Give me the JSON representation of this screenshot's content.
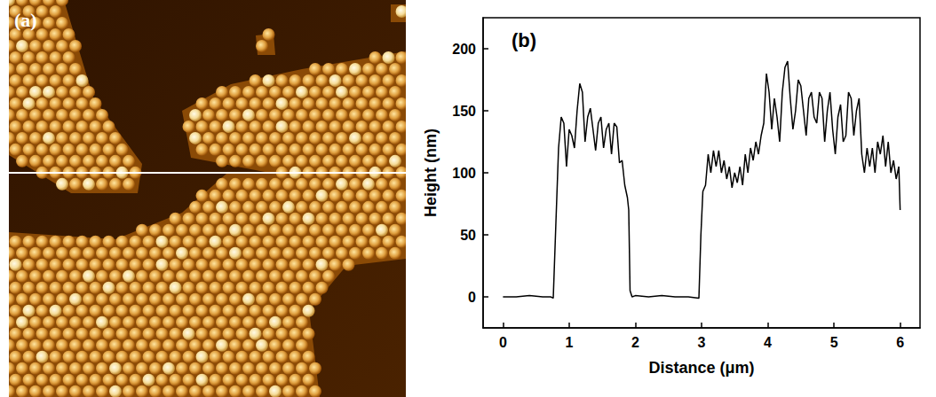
{
  "image": {
    "label": "(a)"
  },
  "chart_data": {
    "type": "line",
    "annotations": [
      "(b)"
    ],
    "x_label": "Distance (μm)",
    "y_label": "Height (nm)",
    "x": [
      0,
      0.2,
      0.4,
      0.6,
      0.72,
      0.76,
      0.8,
      0.84,
      0.88,
      0.92,
      0.96,
      1.0,
      1.04,
      1.08,
      1.12,
      1.16,
      1.2,
      1.24,
      1.28,
      1.32,
      1.36,
      1.4,
      1.44,
      1.48,
      1.52,
      1.56,
      1.6,
      1.64,
      1.68,
      1.72,
      1.76,
      1.8,
      1.84,
      1.88,
      1.9,
      1.92,
      1.95,
      2.0,
      2.2,
      2.4,
      2.6,
      2.8,
      2.96,
      2.99,
      3.02,
      3.06,
      3.1,
      3.14,
      3.18,
      3.22,
      3.26,
      3.3,
      3.34,
      3.38,
      3.42,
      3.46,
      3.5,
      3.54,
      3.58,
      3.62,
      3.66,
      3.7,
      3.74,
      3.78,
      3.82,
      3.86,
      3.9,
      3.94,
      3.98,
      4.02,
      4.06,
      4.1,
      4.14,
      4.18,
      4.22,
      4.26,
      4.3,
      4.34,
      4.38,
      4.42,
      4.46,
      4.5,
      4.54,
      4.58,
      4.62,
      4.66,
      4.7,
      4.74,
      4.78,
      4.82,
      4.86,
      4.9,
      4.94,
      4.98,
      5.02,
      5.06,
      5.1,
      5.14,
      5.18,
      5.22,
      5.26,
      5.3,
      5.34,
      5.38,
      5.42,
      5.46,
      5.5,
      5.54,
      5.58,
      5.62,
      5.66,
      5.7,
      5.74,
      5.78,
      5.82,
      5.86,
      5.9,
      5.94,
      5.98,
      6.0
    ],
    "values": [
      0,
      0,
      1,
      0,
      0,
      -1,
      60,
      120,
      145,
      140,
      105,
      135,
      130,
      120,
      150,
      172,
      165,
      125,
      145,
      152,
      135,
      118,
      140,
      145,
      120,
      135,
      140,
      115,
      140,
      137,
      108,
      110,
      90,
      80,
      70,
      5,
      0,
      1,
      0,
      1,
      0,
      0,
      -1,
      50,
      85,
      90,
      115,
      100,
      118,
      105,
      118,
      100,
      110,
      95,
      105,
      88,
      100,
      92,
      105,
      90,
      115,
      100,
      120,
      110,
      125,
      115,
      130,
      140,
      180,
      165,
      135,
      160,
      145,
      125,
      165,
      185,
      190,
      160,
      135,
      150,
      175,
      170,
      150,
      130,
      160,
      165,
      145,
      140,
      165,
      160,
      125,
      150,
      165,
      135,
      115,
      145,
      155,
      125,
      130,
      165,
      160,
      130,
      150,
      160,
      115,
      100,
      120,
      105,
      120,
      100,
      125,
      115,
      130,
      105,
      125,
      100,
      110,
      95,
      105,
      70
    ],
    "color": "#000000",
    "marker": "none",
    "xlim": [
      -0.3,
      6.3
    ],
    "xticks": [
      0,
      1,
      2,
      3,
      4,
      5,
      6
    ],
    "ylim": [
      -25,
      225
    ],
    "yticks": [
      0,
      50,
      100,
      150,
      200
    ],
    "grid": false
  }
}
